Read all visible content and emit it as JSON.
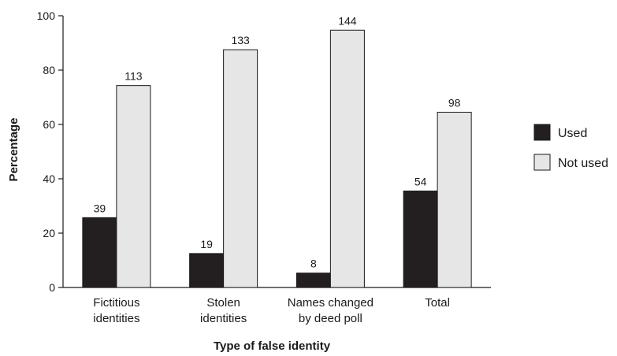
{
  "chart_data": {
    "type": "bar",
    "categories": [
      [
        "Fictitious",
        "identities"
      ],
      [
        "Stolen",
        "identities"
      ],
      [
        "Names changed",
        "by deed poll"
      ],
      [
        "Total"
      ]
    ],
    "series": [
      {
        "name": "Used",
        "color": "#231f20",
        "values": [
          25.7,
          12.5,
          5.3,
          35.5
        ],
        "labels": [
          "39",
          "19",
          "8",
          "54"
        ]
      },
      {
        "name": "Not used",
        "color": "#e6e6e6",
        "values": [
          74.3,
          87.5,
          94.7,
          64.5
        ],
        "labels": [
          "113",
          "133",
          "144",
          "98"
        ]
      }
    ],
    "title": "",
    "xlabel": "Type of false identity",
    "ylabel": "Percentage",
    "ylim": [
      0,
      100
    ],
    "yticks": [
      "0",
      "20",
      "40",
      "60",
      "80",
      "100"
    ],
    "grid": false,
    "legend_position": "right"
  }
}
